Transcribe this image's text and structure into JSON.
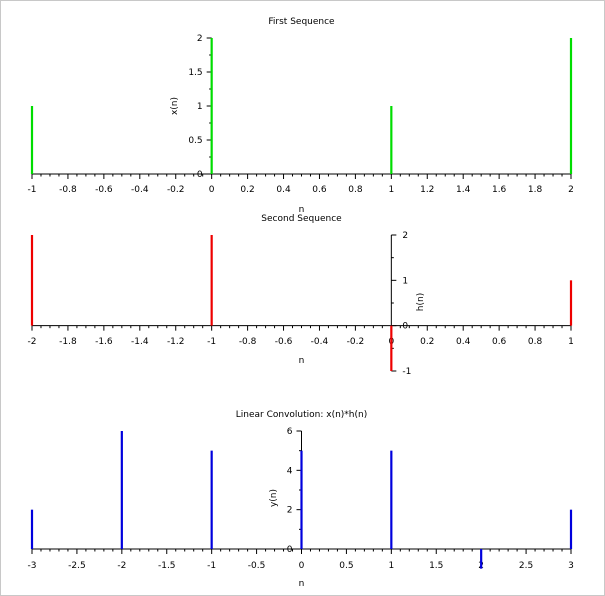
{
  "chart_data": [
    {
      "type": "stem",
      "title": "First Sequence",
      "xlabel": "n",
      "ylabel": "x(n)",
      "xlim": [
        -1,
        2
      ],
      "ylim": [
        0,
        2
      ],
      "xticks": [
        "-1",
        "-0.8",
        "-0.6",
        "-0.4",
        "-0.2",
        "0",
        "0.2",
        "0.4",
        "0.6",
        "0.8",
        "1",
        "1.2",
        "1.4",
        "1.6",
        "1.8",
        "2"
      ],
      "yticks": [
        "0",
        "0.5",
        "1",
        "1.5",
        "2"
      ],
      "color": "#00dd00",
      "x": [
        -1,
        0,
        1,
        2
      ],
      "values": [
        1,
        2,
        1,
        2
      ]
    },
    {
      "type": "stem",
      "title": "Second Sequence",
      "xlabel": "n",
      "ylabel": "h(n)",
      "xlim": [
        -2,
        1
      ],
      "ylim": [
        -1,
        2
      ],
      "xticks": [
        "-2",
        "-1.8",
        "-1.6",
        "-1.4",
        "-1.2",
        "-1",
        "-0.8",
        "-0.6",
        "-0.4",
        "-0.2",
        "0",
        "0.2",
        "0.4",
        "0.6",
        "0.8",
        "1"
      ],
      "yticks": [
        "-1",
        "0",
        "1",
        "2"
      ],
      "color": "#ee0000",
      "x": [
        -2,
        -1,
        0,
        1
      ],
      "values": [
        2,
        2,
        -1,
        1
      ]
    },
    {
      "type": "stem",
      "title": "Linear Convolution: x(n)*h(n)",
      "xlabel": "n",
      "ylabel": "y(n)",
      "xlim": [
        -3,
        3
      ],
      "ylim": [
        0,
        6
      ],
      "xticks": [
        "-3",
        "-2.5",
        "-2",
        "-1.5",
        "-1",
        "-0.5",
        "0",
        "0.5",
        "1",
        "1.5",
        "2",
        "2.5",
        "3"
      ],
      "yticks": [
        "0",
        "2",
        "4",
        "6"
      ],
      "color": "#0000dd",
      "x": [
        -3,
        -2,
        -1,
        0,
        1,
        2,
        3
      ],
      "values": [
        2,
        6,
        5,
        5,
        5,
        -1,
        2
      ]
    }
  ]
}
